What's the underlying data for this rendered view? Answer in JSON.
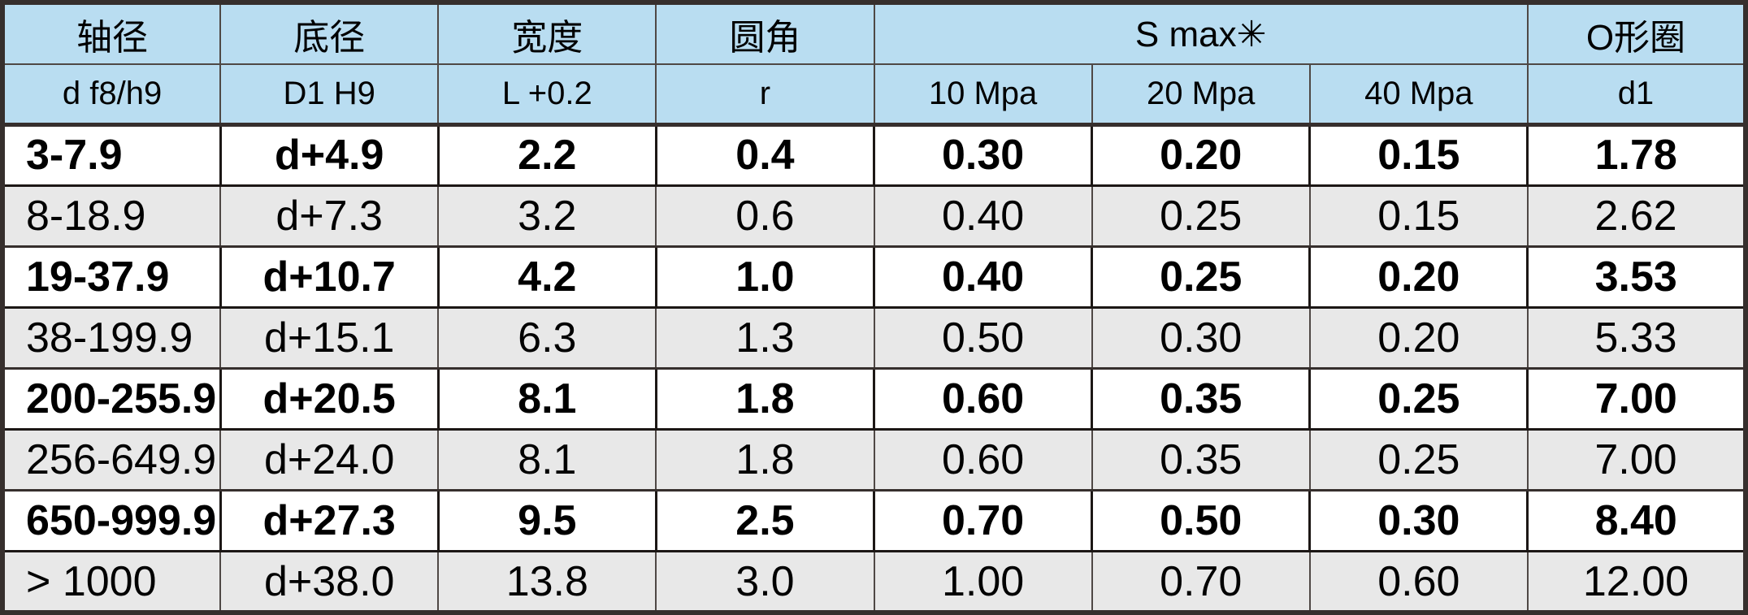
{
  "table": {
    "group_headers": {
      "shaft_diameter": "轴径",
      "base_diameter": "底径",
      "width": "宽度",
      "corner_radius": "圆角",
      "s_max": "S max✳",
      "o_ring": "O形圈"
    },
    "sub_headers": [
      "d f8/h9",
      "D1 H9",
      "L +0.2",
      "r",
      "10 Mpa",
      "20 Mpa",
      "40 Mpa",
      "d1"
    ],
    "rows": [
      [
        "3-7.9",
        "d+4.9",
        "2.2",
        "0.4",
        "0.30",
        "0.20",
        "0.15",
        "1.78"
      ],
      [
        "8-18.9",
        "d+7.3",
        "3.2",
        "0.6",
        "0.40",
        "0.25",
        "0.15",
        "2.62"
      ],
      [
        "19-37.9",
        "d+10.7",
        "4.2",
        "1.0",
        "0.40",
        "0.25",
        "0.20",
        "3.53"
      ],
      [
        "38-199.9",
        "d+15.1",
        "6.3",
        "1.3",
        "0.50",
        "0.30",
        "0.20",
        "5.33"
      ],
      [
        "200-255.9",
        "d+20.5",
        "8.1",
        "1.8",
        "0.60",
        "0.35",
        "0.25",
        "7.00"
      ],
      [
        "256-649.9",
        "d+24.0",
        "8.1",
        "1.8",
        "0.60",
        "0.35",
        "0.25",
        "7.00"
      ],
      [
        "650-999.9",
        "d+27.3",
        "9.5",
        "2.5",
        "0.70",
        "0.50",
        "0.30",
        "8.40"
      ],
      [
        "> 1000",
        "d+38.0",
        "13.8",
        "3.0",
        "1.00",
        "0.70",
        "0.60",
        "12.00"
      ]
    ]
  },
  "colors": {
    "header_bg": "#b9ddf1",
    "alt_row_bg": "#e8e8e8",
    "white_row_bg": "#ffffff",
    "border_dark": "#362f2d",
    "text": "#000000"
  }
}
